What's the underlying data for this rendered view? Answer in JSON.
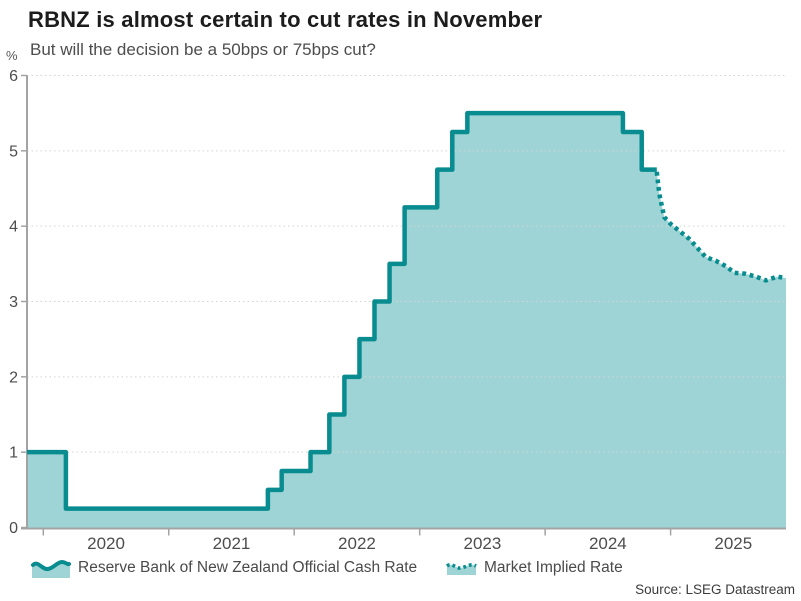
{
  "chart_data": {
    "type": "area",
    "title": "RBNZ is almost certain to cut rates in November",
    "subtitle": "But will the decision be a 50bps or 75bps cut?",
    "unit_label": "%",
    "source": "Source: LSEG Datastream",
    "xlim": [
      2019.87,
      2025.92
    ],
    "ylim": [
      0,
      6
    ],
    "yticks": [
      0,
      1,
      2,
      3,
      4,
      5,
      6
    ],
    "xticks": [
      2020,
      2021,
      2022,
      2023,
      2024,
      2025
    ],
    "xtick_labels": [
      "2020",
      "2021",
      "2022",
      "2023",
      "2024",
      "2025"
    ],
    "grid": "horizontal-dotted",
    "legend_position": "bottom",
    "colors": {
      "line": "#088c8f",
      "fill": "#9ed4d5",
      "axis": "#a3a3a3",
      "grid": "#d4d4d4",
      "tick_text": "#4d4d4d"
    },
    "series": [
      {
        "name": "Reserve Bank of New Zealand Official Cash Rate",
        "line_style": "solid-step",
        "points": [
          [
            2019.87,
            1.0
          ],
          [
            2020.18,
            0.25
          ],
          [
            2021.79,
            0.5
          ],
          [
            2021.9,
            0.75
          ],
          [
            2022.13,
            1.0
          ],
          [
            2022.28,
            1.5
          ],
          [
            2022.4,
            2.0
          ],
          [
            2022.52,
            2.5
          ],
          [
            2022.64,
            3.0
          ],
          [
            2022.76,
            3.5
          ],
          [
            2022.88,
            4.25
          ],
          [
            2023.14,
            4.75
          ],
          [
            2023.26,
            5.25
          ],
          [
            2023.38,
            5.5
          ],
          [
            2024.62,
            5.25
          ],
          [
            2024.77,
            4.75
          ],
          [
            2024.89,
            4.75
          ]
        ]
      },
      {
        "name": "Market Implied Rate",
        "line_style": "dotted",
        "points": [
          [
            2024.89,
            4.72
          ],
          [
            2024.91,
            4.43
          ],
          [
            2024.93,
            4.27
          ],
          [
            2024.95,
            4.12
          ],
          [
            2025.0,
            4.03
          ],
          [
            2025.09,
            3.91
          ],
          [
            2025.15,
            3.83
          ],
          [
            2025.22,
            3.7
          ],
          [
            2025.28,
            3.59
          ],
          [
            2025.36,
            3.54
          ],
          [
            2025.44,
            3.47
          ],
          [
            2025.51,
            3.38
          ],
          [
            2025.59,
            3.37
          ],
          [
            2025.68,
            3.33
          ],
          [
            2025.76,
            3.28
          ],
          [
            2025.85,
            3.33
          ],
          [
            2025.92,
            3.31
          ]
        ]
      }
    ]
  }
}
